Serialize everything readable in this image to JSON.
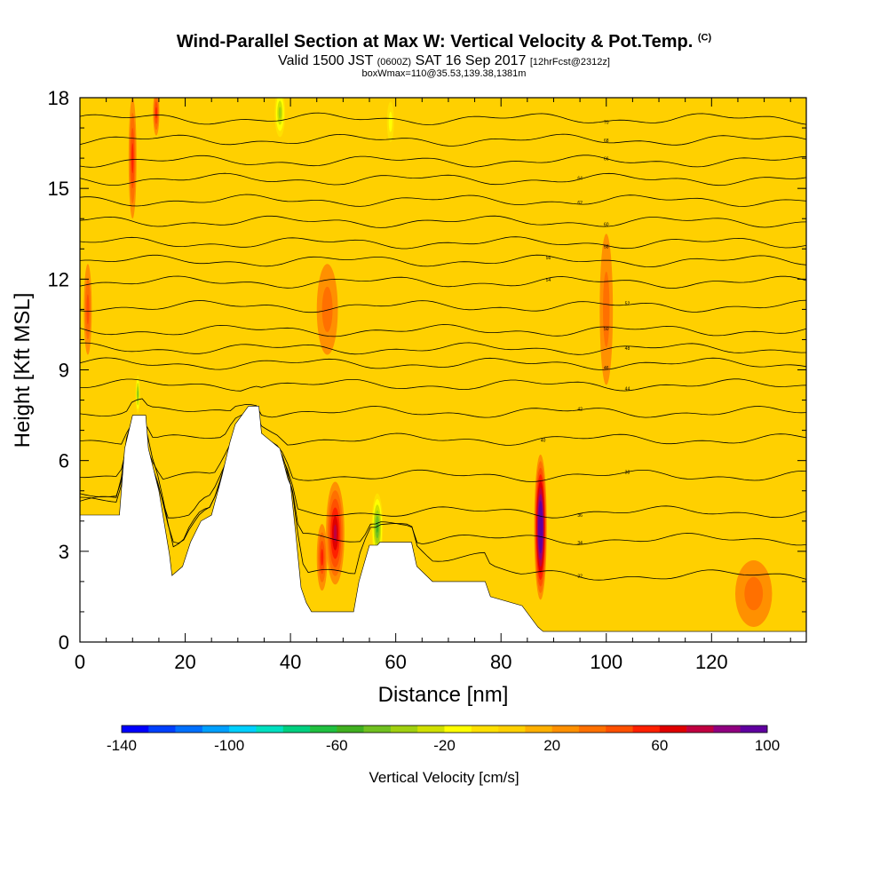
{
  "header": {
    "title_main": "Wind-Parallel Section at Max W: Vertical Velocity & Pot.Temp.",
    "title_mark": "(C)",
    "valid_prefix": "Valid 1500 JST",
    "valid_utc": "(0600Z)",
    "valid_date": "SAT 16 Sep 2017",
    "forecast": "[12hrFcst@2312z]",
    "box_info": "boxWmax=110@35.53,139.38,1381m"
  },
  "chart_data": {
    "type": "heatmap",
    "xlabel": "Distance [nm]",
    "ylabel": "Height [Kft MSL]",
    "xlim": [
      0,
      138
    ],
    "ylim": [
      0,
      18
    ],
    "x_ticks": [
      0,
      20,
      40,
      60,
      80,
      100,
      120
    ],
    "y_ticks": [
      0,
      3,
      6,
      9,
      12,
      15,
      18
    ],
    "background_color": "#ffd000",
    "terrain_profile": [
      [
        0,
        4.2
      ],
      [
        7.5,
        4.2
      ],
      [
        8.5,
        6.4
      ],
      [
        10,
        7.5
      ],
      [
        12.5,
        7.5
      ],
      [
        13,
        6.4
      ],
      [
        15,
        5.0
      ],
      [
        17,
        2.9
      ],
      [
        17.5,
        2.2
      ],
      [
        19.5,
        2.5
      ],
      [
        21,
        3.3
      ],
      [
        23,
        4.0
      ],
      [
        25,
        4.2
      ],
      [
        27,
        5.5
      ],
      [
        28.5,
        6.6
      ],
      [
        29.5,
        7.2
      ],
      [
        32,
        7.8
      ],
      [
        34,
        7.8
      ],
      [
        34.5,
        6.9
      ],
      [
        38,
        6.4
      ],
      [
        39.5,
        5.4
      ],
      [
        40,
        5.2
      ],
      [
        41,
        3.6
      ],
      [
        42,
        1.8
      ],
      [
        43,
        1.3
      ],
      [
        44,
        1.0
      ],
      [
        52,
        1.0
      ],
      [
        53,
        2.0
      ],
      [
        55,
        3.2
      ],
      [
        56.5,
        3.2
      ],
      [
        57,
        3.3
      ],
      [
        63,
        3.3
      ],
      [
        64,
        2.5
      ],
      [
        67,
        2.0
      ],
      [
        77,
        2.0
      ],
      [
        78,
        1.5
      ],
      [
        84,
        1.2
      ],
      [
        87,
        0.5
      ],
      [
        88,
        0.35
      ],
      [
        138,
        0.35
      ]
    ],
    "velocity_cells": [
      {
        "x": 48.5,
        "y": 3.6,
        "w": 3.5,
        "h": 3.4,
        "v": 55
      },
      {
        "x": 87.5,
        "y": 3.8,
        "w": 2.4,
        "h": 4.8,
        "v": 110
      },
      {
        "x": 56.5,
        "y": 3.8,
        "w": 2.5,
        "h": 2.6,
        "v": -70
      },
      {
        "x": 38,
        "y": 17.5,
        "w": 2.5,
        "h": 2.0,
        "v": -50
      },
      {
        "x": 59,
        "y": 17.2,
        "w": 2.0,
        "h": 2.0,
        "v": -30
      },
      {
        "x": 11,
        "y": 8.2,
        "w": 1.0,
        "h": 1.5,
        "v": -60
      },
      {
        "x": 10,
        "y": 16,
        "w": 1.5,
        "h": 4,
        "v": 40
      },
      {
        "x": 14.5,
        "y": 17.5,
        "w": 1.2,
        "h": 1.5,
        "v": 40
      },
      {
        "x": 1.5,
        "y": 11,
        "w": 1.5,
        "h": 3,
        "v": 30
      },
      {
        "x": 47,
        "y": 11,
        "w": 4,
        "h": 3,
        "v": 15
      },
      {
        "x": 100,
        "y": 11,
        "w": 2.5,
        "h": 5,
        "v": 15
      },
      {
        "x": 128,
        "y": 1.6,
        "w": 7,
        "h": 2.2,
        "v": 15
      },
      {
        "x": 46,
        "y": 2.8,
        "w": 2.0,
        "h": 2.2,
        "v": 40
      }
    ],
    "theta_contours": [
      {
        "label": "32",
        "y": 2.2,
        "label_x": 95
      },
      {
        "label": "34",
        "y": 3.4,
        "label_x": 95
      },
      {
        "label": "36",
        "y": 4.3,
        "label_x": 95
      },
      {
        "label": "38",
        "y": 5.5,
        "label_x": 104
      },
      {
        "label": "40",
        "y": 6.7,
        "label_x": 88
      },
      {
        "label": "42",
        "y": 7.6,
        "label_x": 95
      },
      {
        "label": "44",
        "y": 8.5,
        "label_x": 104
      },
      {
        "label": "46",
        "y": 9.2,
        "label_x": 100
      },
      {
        "label": "48",
        "y": 9.7,
        "label_x": 104
      },
      {
        "label": "50",
        "y": 10.3,
        "label_x": 100
      },
      {
        "label": "52",
        "y": 11.1,
        "label_x": 104
      },
      {
        "label": "54",
        "y": 11.9,
        "label_x": 89
      },
      {
        "label": "56",
        "y": 12.6,
        "label_x": 89
      },
      {
        "label": "58",
        "y": 13.2,
        "label_x": 100
      },
      {
        "label": "60",
        "y": 13.9,
        "label_x": 100
      },
      {
        "label": "62",
        "y": 14.6,
        "label_x": 95
      },
      {
        "label": "64",
        "y": 15.3,
        "label_x": 95
      },
      {
        "label": "66",
        "y": 15.9,
        "label_x": 100
      },
      {
        "label": "68",
        "y": 16.6,
        "label_x": 100
      },
      {
        "label": "70",
        "y": 17.3,
        "label_x": 100
      }
    ],
    "colorbar": {
      "title": "Vertical Velocity [cm/s]",
      "min": -140,
      "max": 100,
      "step": 10,
      "tick_labels": [
        "-140",
        "-100",
        "-60",
        "-20",
        "20",
        "60",
        "100"
      ],
      "tick_values": [
        -140,
        -100,
        -60,
        -20,
        20,
        60,
        100
      ],
      "colors": [
        "#0000ff",
        "#0040ff",
        "#0070ff",
        "#00a0ff",
        "#00d0ff",
        "#00e0c0",
        "#00d080",
        "#20c040",
        "#40b020",
        "#70c020",
        "#a0d010",
        "#d0e000",
        "#ffff00",
        "#ffe000",
        "#ffd000",
        "#ffb000",
        "#ff9000",
        "#ff7000",
        "#ff5000",
        "#ff2000",
        "#e00000",
        "#c00040",
        "#900080",
        "#6000a0"
      ]
    }
  }
}
